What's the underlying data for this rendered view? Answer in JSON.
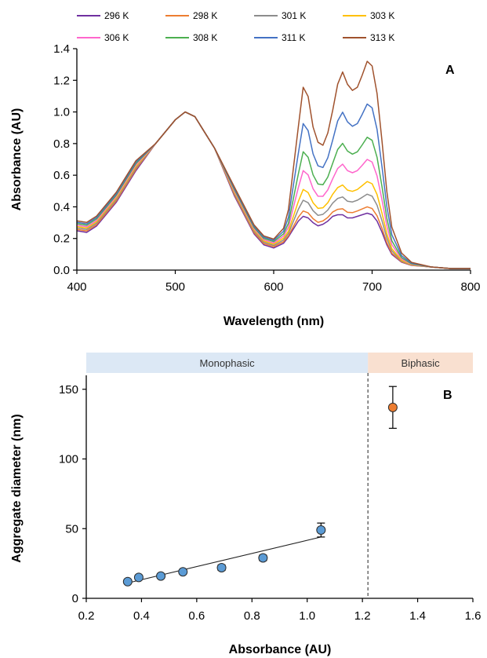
{
  "chart_data": [
    {
      "type": "line",
      "panel_label": "A",
      "xlabel": "Wavelength (nm)",
      "ylabel": "Absorbance (AU)",
      "xlim": [
        400,
        800
      ],
      "ylim": [
        0,
        1.4
      ],
      "x_ticks": [
        400,
        500,
        600,
        700,
        800
      ],
      "y_ticks": [
        "0.0",
        "0.2",
        "0.4",
        "0.6",
        "0.8",
        "1.0",
        "1.2",
        "1.4"
      ],
      "grid": false,
      "legend_position": "top",
      "x": [
        400,
        410,
        420,
        440,
        460,
        480,
        500,
        510,
        520,
        540,
        560,
        580,
        590,
        600,
        610,
        615,
        620,
        625,
        630,
        635,
        640,
        645,
        650,
        655,
        660,
        665,
        670,
        675,
        680,
        685,
        690,
        695,
        700,
        705,
        710,
        715,
        720,
        730,
        740,
        760,
        780,
        800
      ],
      "base_curve": [
        0.28,
        0.27,
        0.31,
        0.46,
        0.66,
        0.8,
        0.95,
        1.0,
        0.97,
        0.77,
        0.47,
        0.23,
        0.16,
        0.14,
        0.17,
        0.21,
        0.26,
        0.31,
        0.34,
        0.33,
        0.3,
        0.28,
        0.29,
        0.31,
        0.34,
        0.35,
        0.35,
        0.33,
        0.33,
        0.34,
        0.35,
        0.36,
        0.35,
        0.31,
        0.24,
        0.16,
        0.1,
        0.05,
        0.03,
        0.02,
        0.01,
        0.01
      ],
      "feature_shape": [
        0,
        0,
        0,
        0,
        0,
        0,
        0,
        0,
        0,
        0,
        0,
        0,
        0,
        0,
        0.04,
        0.18,
        0.4,
        0.62,
        0.85,
        0.8,
        0.63,
        0.55,
        0.52,
        0.58,
        0.7,
        0.86,
        0.94,
        0.88,
        0.84,
        0.85,
        0.92,
        1.0,
        0.98,
        0.84,
        0.6,
        0.35,
        0.18,
        0.06,
        0.02,
        0,
        0,
        0
      ],
      "series": [
        {
          "name": "296 K",
          "color": "#7030a0",
          "peak": 0.36
        },
        {
          "name": "298 K",
          "color": "#ed7d31",
          "peak": 0.4
        },
        {
          "name": "301 K",
          "color": "#8c8c8c",
          "peak": 0.48
        },
        {
          "name": "303 K",
          "color": "#ffc000",
          "peak": 0.56
        },
        {
          "name": "306 K",
          "color": "#ff66cc",
          "peak": 0.7
        },
        {
          "name": "308 K",
          "color": "#4caf50",
          "peak": 0.84
        },
        {
          "name": "311 K",
          "color": "#4472c4",
          "peak": 1.05
        },
        {
          "name": "313 K",
          "color": "#a0522d",
          "peak": 1.32
        }
      ]
    },
    {
      "type": "scatter",
      "panel_label": "B",
      "xlabel": "Absorbance (AU)",
      "ylabel": "Aggregate diameter (nm)",
      "xlim": [
        0.2,
        1.6
      ],
      "ylim": [
        0,
        160
      ],
      "x_ticks": [
        "0.2",
        "0.4",
        "0.6",
        "0.8",
        "1.0",
        "1.2",
        "1.4",
        "1.6"
      ],
      "y_ticks": [
        "0",
        "50",
        "100",
        "150"
      ],
      "grid": false,
      "regions": [
        {
          "label": "Monophasic",
          "x_from": 0.2,
          "x_to": 1.22,
          "color": "#dce8f5"
        },
        {
          "label": "Biphasic",
          "x_from": 1.22,
          "x_to": 1.6,
          "color": "#f9e0d0"
        }
      ],
      "divider_x": 1.22,
      "fit_line": {
        "x": [
          0.35,
          1.05
        ],
        "y": [
          11,
          44
        ]
      },
      "series": [
        {
          "name": "",
          "color": "#5b9bd5",
          "x": [
            0.35,
            0.39,
            0.47,
            0.55,
            0.69,
            0.84,
            1.05
          ],
          "y": [
            12,
            15,
            16,
            19,
            22,
            29,
            49
          ],
          "err": [
            1.5,
            1.5,
            1.5,
            1.5,
            2,
            2,
            5
          ]
        },
        {
          "name": "",
          "color": "#ed7d31",
          "x": [
            1.31
          ],
          "y": [
            137
          ],
          "err": [
            15
          ]
        }
      ]
    }
  ]
}
